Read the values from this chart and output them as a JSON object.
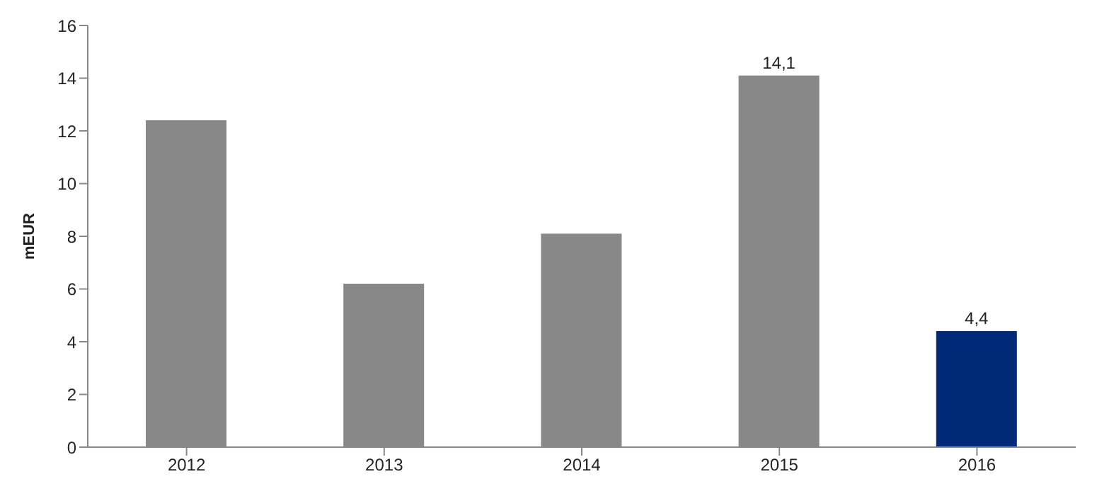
{
  "chart_data": {
    "type": "bar",
    "ylabel": "mEUR",
    "categories": [
      "2012",
      "2013",
      "2014",
      "2015",
      "2016"
    ],
    "values": [
      12.4,
      6.2,
      8.1,
      14.1,
      4.4
    ],
    "colors": [
      "#888888",
      "#888888",
      "#888888",
      "#888888",
      "#002a78"
    ],
    "value_labels": [
      null,
      null,
      null,
      "14,1",
      "4,4"
    ],
    "ylim": [
      0,
      16
    ],
    "yticks": [
      0,
      2,
      4,
      6,
      8,
      10,
      12,
      14,
      16
    ],
    "grid": false,
    "legend": false
  }
}
